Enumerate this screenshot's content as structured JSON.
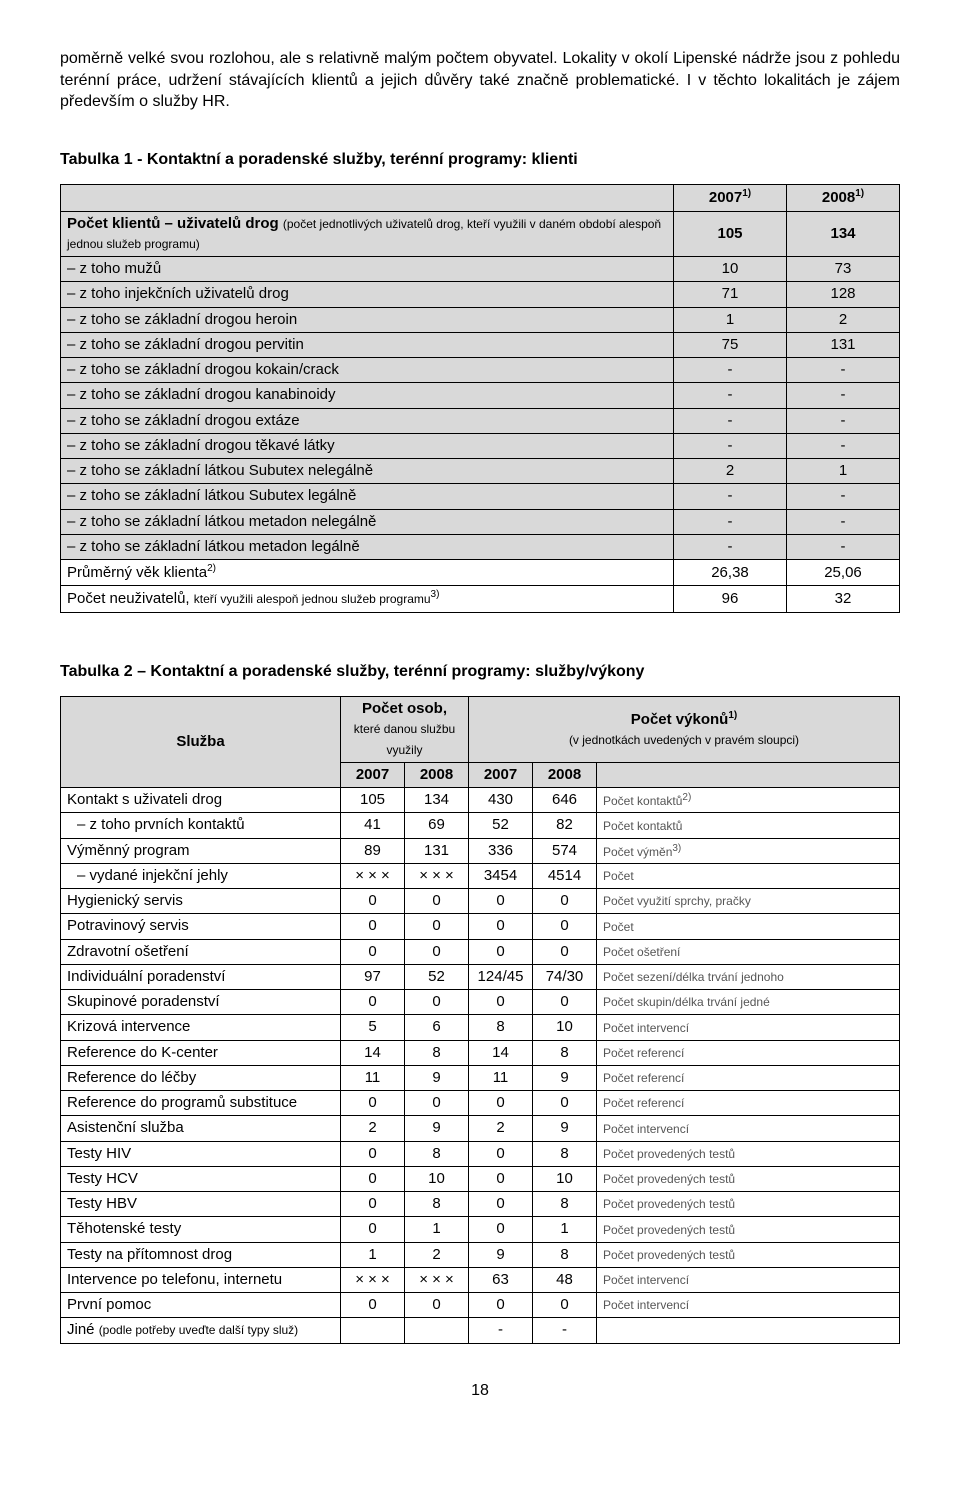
{
  "intro": "poměrně velké svou rozlohou, ale s relativně malým počtem obyvatel. Lokality v okolí Lipenské nádrže jsou z pohledu terénní práce, udržení stávajících klientů a jejich důvěry také značně problematické. I v těchto lokalitách je zájem především o služby HR.",
  "table1": {
    "title": "Tabulka 1 - Kontaktní a poradenské služby, terénní programy: klienti",
    "head_y1": "2007",
    "head_y2": "2008",
    "sup": "1)",
    "rows": [
      {
        "label_main": "Počet klientů – uživatelů drog ",
        "label_small": "(počet jednotlivých uživatelů drog, kteří využili v daném období alespoň jednou služeb programu)",
        "v1": "105",
        "v2": "134",
        "shade": true,
        "bold": true
      },
      {
        "label_main": "– z toho mužů",
        "v1": "10",
        "v2": "73",
        "shade": true
      },
      {
        "label_main": "– z toho injekčních uživatelů drog",
        "v1": "71",
        "v2": "128",
        "shade": true
      },
      {
        "label_main": "– z toho se základní drogou heroin",
        "v1": "1",
        "v2": "2",
        "shade": true
      },
      {
        "label_main": "– z toho se základní drogou pervitin",
        "v1": "75",
        "v2": "131",
        "shade": true
      },
      {
        "label_main": "– z toho se základní drogou kokain/crack",
        "v1": "-",
        "v2": "-",
        "shade": true
      },
      {
        "label_main": "– z toho se základní drogou kanabinoidy",
        "v1": "-",
        "v2": "-",
        "shade": true
      },
      {
        "label_main": "– z toho se základní drogou extáze",
        "v1": "-",
        "v2": "-",
        "shade": true
      },
      {
        "label_main": "– z toho se základní drogou těkavé látky",
        "v1": "-",
        "v2": "-",
        "shade": true
      },
      {
        "label_main": "– z toho se základní látkou Subutex nelegálně",
        "v1": "2",
        "v2": "1",
        "shade": true
      },
      {
        "label_main": "– z toho se základní látkou Subutex legálně",
        "v1": "-",
        "v2": "-",
        "shade": true
      },
      {
        "label_main": "– z toho se základní látkou metadon nelegálně",
        "v1": "-",
        "v2": "-",
        "shade": true
      },
      {
        "label_main": "– z toho se základní látkou metadon legálně",
        "v1": "-",
        "v2": "-",
        "shade": true
      },
      {
        "label_main": "Průměrný věk klienta",
        "sup": "2)",
        "v1": "26,38",
        "v2": "25,06",
        "shade": false
      },
      {
        "label_main": "Počet neuživatelů, ",
        "label_small": "kteří využili alespoň jednou služeb programu",
        "sup": "3)",
        "v1": "96",
        "v2": "32",
        "shade": false
      }
    ]
  },
  "table2": {
    "title": "Tabulka 2 – Kontaktní a poradenské služby, terénní programy: služby/výkony",
    "head_service": "Služba",
    "head_persons_main": "Počet osob,",
    "head_persons_sub": "které danou službu využily",
    "head_outputs_main": "Počet výkonů",
    "head_outputs_sup": "1)",
    "head_outputs_sub": "(v jednotkách uvedených v pravém sloupci)",
    "year_a": "2007",
    "year_b": "2008",
    "rows": [
      {
        "label": "Kontakt s uživateli drog",
        "p1": "105",
        "p2": "134",
        "o1": "430",
        "o2": "646",
        "unit": "Počet  kontaktů",
        "usup": "2)"
      },
      {
        "label": "– z toho prvních kontaktů",
        "p1": "41",
        "p2": "69",
        "o1": "52",
        "o2": "82",
        "unit": "Počet  kontaktů",
        "sub": true
      },
      {
        "label": "Výměnný program",
        "p1": "89",
        "p2": "131",
        "o1": "336",
        "o2": "574",
        "unit": "Počet výměn",
        "usup": "3)"
      },
      {
        "label": "– vydané injekční jehly",
        "p1": "× × ×",
        "p2": "× × ×",
        "o1": "3454",
        "o2": "4514",
        "unit": "Počet",
        "sub": true
      },
      {
        "label": "Hygienický servis",
        "p1": "0",
        "p2": "0",
        "o1": "0",
        "o2": "0",
        "unit": "Počet využití sprchy, pračky"
      },
      {
        "label": "Potravinový servis",
        "p1": "0",
        "p2": "0",
        "o1": "0",
        "o2": "0",
        "unit": "Počet"
      },
      {
        "label": "Zdravotní ošetření",
        "p1": "0",
        "p2": "0",
        "o1": "0",
        "o2": "0",
        "unit": "Počet ošetření"
      },
      {
        "label": "Individuální poradenství",
        "p1": "97",
        "p2": "52",
        "o1": "124/45",
        "o2": "74/30",
        "unit": "Počet sezení/délka trvání jednoho"
      },
      {
        "label": "Skupinové poradenství",
        "p1": "0",
        "p2": "0",
        "o1": "0",
        "o2": "0",
        "unit": "Počet skupin/délka trvání jedné"
      },
      {
        "label": "Krizová intervence",
        "p1": "5",
        "p2": "6",
        "o1": "8",
        "o2": "10",
        "unit": "Počet intervencí"
      },
      {
        "label": "Reference do K-center",
        "p1": "14",
        "p2": "8",
        "o1": "14",
        "o2": "8",
        "unit": "Počet referencí"
      },
      {
        "label": "Reference do léčby",
        "p1": "11",
        "p2": "9",
        "o1": "11",
        "o2": "9",
        "unit": "Počet referencí"
      },
      {
        "label": "Reference do programů substituce",
        "p1": "0",
        "p2": "0",
        "o1": "0",
        "o2": "0",
        "unit": "Počet referencí"
      },
      {
        "label": "Asistenční služba",
        "p1": "2",
        "p2": "9",
        "o1": "2",
        "o2": "9",
        "unit": "Počet intervencí"
      },
      {
        "label": "Testy HIV",
        "p1": "0",
        "p2": "8",
        "o1": "0",
        "o2": "8",
        "unit": "Počet provedených testů"
      },
      {
        "label": "Testy HCV",
        "p1": "0",
        "p2": "10",
        "o1": "0",
        "o2": "10",
        "unit": "Počet provedených testů"
      },
      {
        "label": "Testy HBV",
        "p1": "0",
        "p2": "8",
        "o1": "0",
        "o2": "8",
        "unit": "Počet provedených testů"
      },
      {
        "label": "Těhotenské testy",
        "p1": "0",
        "p2": "1",
        "o1": "0",
        "o2": "1",
        "unit": "Počet provedených testů"
      },
      {
        "label": "Testy na přítomnost drog",
        "p1": "1",
        "p2": "2",
        "o1": "9",
        "o2": "8",
        "unit": "Počet provedených testů"
      },
      {
        "label": "Intervence po telefonu, internetu",
        "p1": "× × ×",
        "p2": "× × ×",
        "o1": "63",
        "o2": "48",
        "unit": "Počet intervencí"
      },
      {
        "label": "První pomoc",
        "p1": "0",
        "p2": "0",
        "o1": "0",
        "o2": "0",
        "unit": "Počet intervencí"
      },
      {
        "label": "Jiné ",
        "lsmall": "(podle potřeby uveďte další typy služ)",
        "p1": "",
        "p2": "",
        "o1": "-",
        "o2": "-",
        "unit": ""
      }
    ]
  },
  "pagenum": "18"
}
